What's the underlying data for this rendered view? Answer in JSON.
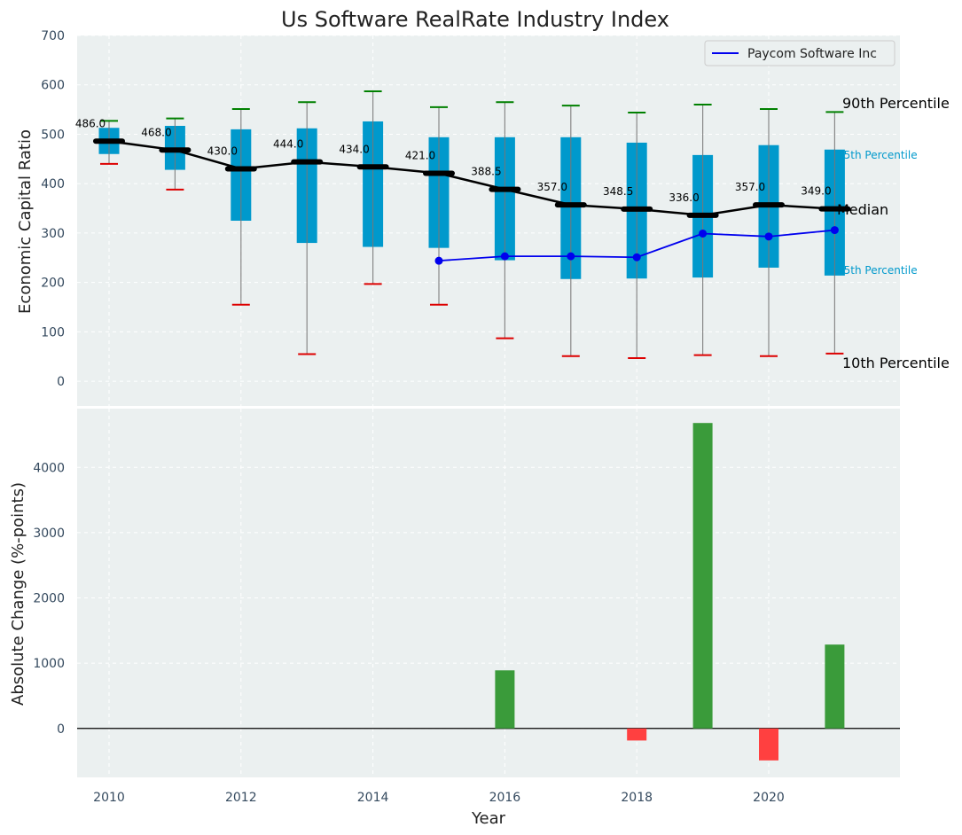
{
  "chart_data": [
    {
      "type": "box",
      "title": "Us Software RealRate Industry Index",
      "xlabel": "",
      "ylabel": "Economic Capital Ratio",
      "ylim": [
        -50,
        700
      ],
      "yticks": [
        0,
        100,
        200,
        300,
        400,
        500,
        600,
        700
      ],
      "xticks": [
        2010,
        2012,
        2014,
        2016,
        2018,
        2020
      ],
      "grid": true,
      "legend_position": "top-right",
      "years": [
        2010,
        2011,
        2012,
        2013,
        2014,
        2015,
        2016,
        2017,
        2018,
        2019,
        2020,
        2021
      ],
      "p10": [
        440,
        388,
        155,
        55,
        197,
        155,
        87,
        51,
        47,
        53,
        51,
        56
      ],
      "p25": [
        460,
        428,
        325,
        280,
        272,
        270,
        245,
        207,
        208,
        210,
        230,
        214
      ],
      "median": [
        486.0,
        468.0,
        430.0,
        444.0,
        434.0,
        421.0,
        388.5,
        357.0,
        348.5,
        336.0,
        357.0,
        349.0
      ],
      "median_labels": [
        "486.0",
        "468.0",
        "430.0",
        "444.0",
        "434.0",
        "421.0",
        "388.5",
        "357.0",
        "348.5",
        "336.0",
        "357.0",
        "349.0"
      ],
      "p75": [
        513,
        517,
        510,
        512,
        526,
        494,
        494,
        494,
        483,
        458,
        478,
        469
      ],
      "p90": [
        527,
        532,
        551,
        565,
        587,
        555,
        565,
        558,
        544,
        560,
        551,
        545
      ],
      "series": [
        {
          "name": "Paycom Software Inc",
          "color": "#0000ee",
          "years": [
            2015,
            2016,
            2017,
            2018,
            2019,
            2020,
            2021
          ],
          "values": [
            244,
            253,
            253,
            251,
            299,
            293,
            306
          ]
        }
      ],
      "annotations": {
        "p90": "90th Percentile",
        "p75": "75th Percentile",
        "median": "Median",
        "p25": "25th Percentile",
        "p10": "10th Percentile"
      },
      "colors": {
        "box": "#0099cc",
        "median": "#000000",
        "p90_cap": "#008000",
        "p10_cap": "#dd0000",
        "whisker": "#888888",
        "bg": "#ebf0f0"
      }
    },
    {
      "type": "bar",
      "xlabel": "Year",
      "ylabel": "Absolute Change (%-points)",
      "ylim": [
        -750,
        4900
      ],
      "yticks": [
        0,
        1000,
        2000,
        3000,
        4000
      ],
      "xticks": [
        2010,
        2012,
        2014,
        2016,
        2018,
        2020
      ],
      "grid": true,
      "years": [
        2016,
        2018,
        2019,
        2020,
        2021
      ],
      "values": [
        890,
        -185,
        4680,
        -490,
        1285
      ],
      "colors": {
        "positive": "#3a9b3a",
        "negative": "#ff4040"
      }
    }
  ]
}
